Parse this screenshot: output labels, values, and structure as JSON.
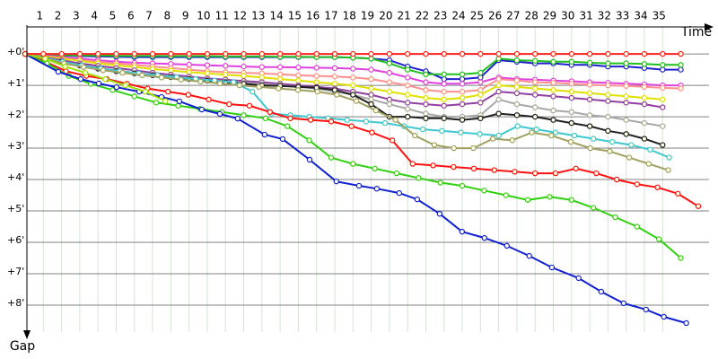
{
  "chart_data": {
    "type": "line",
    "x_label": "Time",
    "y_label": "Gap",
    "xlim": [
      0,
      37.5
    ],
    "ylim": [
      -0.86,
      9.0
    ],
    "y_inverted": true,
    "grid": true,
    "xticks": [
      1,
      2,
      3,
      4,
      5,
      6,
      7,
      8,
      9,
      10,
      11,
      12,
      13,
      14,
      15,
      16,
      17,
      18,
      19,
      20,
      21,
      22,
      23,
      24,
      25,
      26,
      27,
      28,
      29,
      30,
      31,
      32,
      33,
      34,
      35
    ],
    "yticks": [
      {
        "value": 0,
        "label": "+0'"
      },
      {
        "value": 1,
        "label": "+1'"
      },
      {
        "value": 2,
        "label": "+2'"
      },
      {
        "value": 3,
        "label": "+3'"
      },
      {
        "value": 4,
        "label": "+4'"
      },
      {
        "value": 5,
        "label": "+5'"
      },
      {
        "value": 6,
        "label": "+6'"
      },
      {
        "value": 7,
        "label": "+7'"
      },
      {
        "value": 8,
        "label": "+8'"
      }
    ],
    "series": [
      {
        "color": "#2020d0",
        "x": [
          0,
          1,
          2,
          3,
          4,
          5,
          6,
          7,
          8,
          9,
          10,
          11,
          12,
          13,
          14,
          15,
          16,
          17,
          18,
          19,
          20,
          21,
          22,
          23,
          24,
          25,
          26,
          27,
          28,
          29,
          30,
          31,
          32,
          33,
          34,
          35,
          36
        ],
        "values": [
          0,
          0.03,
          0.05,
          0.07,
          0.08,
          0.09,
          0.1,
          0.1,
          0.1,
          0.1,
          0.1,
          0.1,
          0.1,
          0.1,
          0.1,
          0.1,
          0.1,
          0.1,
          0.12,
          0.15,
          0.2,
          0.4,
          0.55,
          0.8,
          0.8,
          0.75,
          0.2,
          0.25,
          0.3,
          0.3,
          0.35,
          0.35,
          0.4,
          0.4,
          0.45,
          0.5,
          0.5
        ]
      },
      {
        "color": "#20c020",
        "x": [
          0,
          1,
          2,
          3,
          4,
          5,
          6,
          7,
          8,
          9,
          10,
          11,
          12,
          13,
          14,
          15,
          16,
          17,
          18,
          19,
          20,
          21,
          22,
          23,
          24,
          25,
          26,
          27,
          28,
          29,
          30,
          31,
          32,
          33,
          34,
          35,
          36
        ],
        "values": [
          0,
          0.02,
          0.04,
          0.05,
          0.05,
          0.06,
          0.06,
          0.06,
          0.07,
          0.07,
          0.07,
          0.08,
          0.08,
          0.08,
          0.09,
          0.09,
          0.1,
          0.1,
          0.12,
          0.15,
          0.3,
          0.5,
          0.65,
          0.65,
          0.65,
          0.6,
          0.15,
          0.2,
          0.22,
          0.25,
          0.25,
          0.28,
          0.3,
          0.3,
          0.32,
          0.35,
          0.35
        ]
      },
      {
        "color": "#e040e0",
        "x": [
          0,
          1,
          2,
          3,
          4,
          5,
          6,
          7,
          8,
          9,
          10,
          11,
          12,
          13,
          14,
          15,
          16,
          17,
          18,
          19,
          20,
          21,
          22,
          23,
          24,
          25,
          26,
          27,
          28,
          29,
          30,
          31,
          32,
          33,
          34,
          35,
          36
        ],
        "values": [
          0,
          0.05,
          0.1,
          0.15,
          0.2,
          0.25,
          0.28,
          0.3,
          0.32,
          0.34,
          0.36,
          0.38,
          0.4,
          0.42,
          0.42,
          0.43,
          0.44,
          0.45,
          0.47,
          0.5,
          0.6,
          0.75,
          0.9,
          0.95,
          0.95,
          0.9,
          0.75,
          0.8,
          0.82,
          0.85,
          0.87,
          0.9,
          0.92,
          0.95,
          0.97,
          1.0,
          1.0
        ]
      },
      {
        "color": "#ff9090",
        "x": [
          0,
          1,
          2,
          3,
          4,
          5,
          6,
          7,
          8,
          9,
          10,
          11,
          12,
          13,
          14,
          15,
          16,
          17,
          18,
          19,
          20,
          21,
          22,
          23,
          24,
          25,
          26,
          27,
          28,
          29,
          30,
          31,
          32,
          33,
          34,
          35,
          36
        ],
        "values": [
          0,
          0.07,
          0.13,
          0.2,
          0.25,
          0.3,
          0.35,
          0.4,
          0.45,
          0.5,
          0.55,
          0.58,
          0.6,
          0.62,
          0.65,
          0.68,
          0.7,
          0.72,
          0.75,
          0.8,
          0.9,
          1.0,
          1.15,
          1.2,
          1.2,
          1.15,
          0.8,
          0.85,
          0.9,
          0.92,
          0.95,
          0.98,
          1.0,
          1.02,
          1.05,
          1.08,
          1.1
        ]
      },
      {
        "color": "#e0e000",
        "x": [
          0,
          1,
          2,
          3,
          4,
          5,
          6,
          7,
          8,
          9,
          10,
          11,
          12,
          13,
          14,
          15,
          16,
          17,
          18,
          19,
          20,
          21,
          22,
          23,
          24,
          25,
          26,
          27,
          28,
          29,
          30,
          31,
          32,
          33,
          34,
          35
        ],
        "values": [
          0,
          0.08,
          0.15,
          0.22,
          0.3,
          0.36,
          0.42,
          0.48,
          0.53,
          0.58,
          0.62,
          0.66,
          0.7,
          0.75,
          0.8,
          0.85,
          0.9,
          0.95,
          1.0,
          1.1,
          1.2,
          1.3,
          1.4,
          1.45,
          1.4,
          1.3,
          1.0,
          1.05,
          1.1,
          1.15,
          1.2,
          1.25,
          1.3,
          1.35,
          1.4,
          1.45
        ]
      },
      {
        "color": "#9040a0",
        "x": [
          0,
          1,
          2,
          3,
          4,
          5,
          6,
          7,
          8,
          9,
          10,
          11,
          12,
          13,
          14,
          15,
          16,
          17,
          18,
          19,
          20,
          21,
          22,
          23,
          24,
          25,
          26,
          27,
          28,
          29,
          30,
          31,
          32,
          33,
          34,
          35
        ],
        "values": [
          0,
          0.1,
          0.2,
          0.3,
          0.38,
          0.45,
          0.52,
          0.6,
          0.66,
          0.72,
          0.78,
          0.82,
          0.86,
          0.9,
          0.95,
          1.0,
          1.05,
          1.1,
          1.2,
          1.3,
          1.45,
          1.55,
          1.6,
          1.65,
          1.6,
          1.55,
          1.2,
          1.25,
          1.3,
          1.35,
          1.4,
          1.45,
          1.5,
          1.55,
          1.6,
          1.7
        ]
      },
      {
        "color": "#a8a8a8",
        "x": [
          0,
          1,
          2,
          3,
          4,
          5,
          6,
          7,
          8,
          9,
          10,
          11,
          12,
          13,
          14,
          15,
          16,
          17,
          18,
          19,
          20,
          21,
          22,
          23,
          24,
          25,
          26,
          27,
          28,
          29,
          30,
          31,
          32,
          33,
          34,
          35
        ],
        "values": [
          0,
          0.12,
          0.25,
          0.35,
          0.45,
          0.52,
          0.6,
          0.66,
          0.72,
          0.78,
          0.83,
          0.88,
          0.92,
          0.96,
          1.0,
          1.05,
          1.1,
          1.2,
          1.3,
          1.45,
          1.6,
          1.75,
          1.9,
          2.0,
          2.0,
          1.95,
          1.45,
          1.6,
          1.7,
          1.8,
          1.85,
          1.95,
          2.0,
          2.1,
          2.2,
          2.3
        ]
      },
      {
        "color": "#202020",
        "x": [
          0,
          1,
          2,
          3,
          4,
          5,
          6,
          7,
          8,
          9,
          10,
          11,
          12,
          13,
          14,
          15,
          16,
          17,
          18,
          19,
          20,
          21,
          22,
          23,
          24,
          25,
          26,
          27,
          28,
          29,
          30,
          31,
          32,
          33,
          34,
          35
        ],
        "values": [
          0,
          0.12,
          0.25,
          0.37,
          0.47,
          0.55,
          0.62,
          0.68,
          0.74,
          0.8,
          0.85,
          0.9,
          0.95,
          1.0,
          1.02,
          1.05,
          1.08,
          1.15,
          1.3,
          1.6,
          2.0,
          2.0,
          2.05,
          2.05,
          2.1,
          2.05,
          1.9,
          1.95,
          2.0,
          2.1,
          2.2,
          2.3,
          2.45,
          2.55,
          2.7,
          2.9
        ]
      },
      {
        "color": "#40c8d0",
        "x": [
          0,
          1.04,
          2.08,
          3.12,
          4.16,
          5.2,
          6.24,
          7.28,
          8.32,
          9.36,
          10.4,
          11.44,
          12.48,
          13.52,
          14.56,
          15.6,
          16.64,
          17.68,
          18.72,
          19.76,
          20.8,
          21.84,
          22.88,
          23.92,
          24.96,
          26,
          27.04,
          28.08,
          29.12,
          30.16,
          31.2,
          32.24,
          33.28,
          34.32,
          35.36
        ],
        "values": [
          0,
          0.12,
          0.25,
          0.37,
          0.47,
          0.55,
          0.62,
          0.68,
          0.74,
          0.8,
          0.85,
          0.9,
          1.2,
          1.9,
          1.95,
          2.0,
          2.05,
          2.1,
          2.15,
          2.2,
          2.3,
          2.4,
          2.45,
          2.5,
          2.55,
          2.6,
          2.3,
          2.4,
          2.5,
          2.6,
          2.7,
          2.8,
          2.9,
          3.05,
          3.3
        ]
      },
      {
        "color": "#a0a060",
        "x": [
          0,
          1.07,
          2.14,
          3.21,
          4.28,
          5.35,
          6.42,
          7.49,
          8.56,
          9.63,
          10.7,
          11.77,
          12.84,
          13.91,
          14.98,
          16.05,
          17.12,
          18.19,
          19.26,
          20.33,
          21.4,
          22.47,
          23.54,
          24.61,
          25.68,
          26.75,
          27.82,
          28.89,
          29.96,
          31.03,
          32.1,
          33.17,
          34.24,
          35.31
        ],
        "values": [
          0,
          0.15,
          0.3,
          0.42,
          0.52,
          0.6,
          0.68,
          0.75,
          0.82,
          0.88,
          0.94,
          1.0,
          1.05,
          1.1,
          1.15,
          1.2,
          1.3,
          1.5,
          1.8,
          2.1,
          2.6,
          2.9,
          3.0,
          3.0,
          2.7,
          2.75,
          2.5,
          2.6,
          2.8,
          3.0,
          3.1,
          3.3,
          3.5,
          3.7
        ]
      },
      {
        "color": "#ff1010",
        "x": [
          0,
          1.12,
          2.24,
          3.36,
          4.48,
          5.6,
          6.72,
          7.84,
          8.96,
          10.08,
          11.2,
          12.32,
          13.44,
          14.56,
          15.68,
          16.8,
          17.92,
          19.04,
          20.16,
          21.28,
          22.4,
          23.52,
          24.64,
          25.76,
          26.88,
          28,
          29.12,
          30.24,
          31.36,
          32.48,
          33.6,
          34.72,
          35.84,
          36.96
        ],
        "values": [
          0,
          0.25,
          0.55,
          0.7,
          0.8,
          0.95,
          1.1,
          1.2,
          1.3,
          1.45,
          1.6,
          1.65,
          1.85,
          2.05,
          2.1,
          2.15,
          2.3,
          2.5,
          2.75,
          3.5,
          3.55,
          3.6,
          3.65,
          3.7,
          3.75,
          3.8,
          3.8,
          3.65,
          3.8,
          4.0,
          4.15,
          4.25,
          4.45,
          4.85
        ]
      },
      {
        "color": "#30d010",
        "x": [
          0,
          1.2,
          2.4,
          3.6,
          4.8,
          6,
          7.2,
          8.4,
          9.6,
          10.8,
          12,
          13.2,
          14.4,
          15.6,
          16.8,
          18,
          19.2,
          20.4,
          21.6,
          22.8,
          24,
          25.2,
          26.4,
          27.6,
          28.8,
          30,
          31.2,
          32.4,
          33.6,
          34.8,
          36
        ],
        "values": [
          0,
          0.3,
          0.7,
          0.95,
          1.15,
          1.35,
          1.55,
          1.65,
          1.75,
          1.85,
          1.95,
          2.05,
          2.3,
          2.75,
          3.3,
          3.5,
          3.65,
          3.8,
          3.95,
          4.1,
          4.2,
          4.35,
          4.5,
          4.65,
          4.55,
          4.65,
          4.9,
          5.2,
          5.5,
          5.9,
          6.5
        ]
      },
      {
        "color": "#1020d0",
        "x": [
          0,
          1.82,
          3.05,
          4.04,
          5.02,
          6.26,
          7.49,
          8.47,
          9.7,
          10.69,
          11.67,
          13.15,
          14.14,
          15.62,
          17.09,
          18.33,
          19.31,
          20.54,
          21.53,
          22.76,
          23.99,
          25.22,
          26.45,
          27.68,
          28.92,
          30.39,
          31.63,
          32.86,
          34.09,
          35.07,
          36.3
        ],
        "values": [
          0,
          0.57,
          0.8,
          0.94,
          1.06,
          1.2,
          1.37,
          1.51,
          1.77,
          1.91,
          2.06,
          2.57,
          2.71,
          3.37,
          4.06,
          4.2,
          4.29,
          4.43,
          4.63,
          5.09,
          5.66,
          5.86,
          6.11,
          6.43,
          6.8,
          7.14,
          7.57,
          7.94,
          8.14,
          8.37,
          8.57
        ]
      },
      {
        "color": "#a0e000",
        "x": [
          0,
          1.1,
          2.2,
          3.3,
          4.4,
          5.5,
          6.6,
          7.7
        ],
        "values": [
          0,
          0.15,
          0.4,
          0.6,
          0.8,
          1.0,
          1.2,
          1.5
        ]
      },
      {
        "color": "#ff2020",
        "x": [
          0,
          1,
          2,
          3,
          4,
          5,
          6,
          7,
          8,
          9,
          10,
          11,
          12,
          13,
          14,
          15,
          16,
          17,
          18,
          19,
          20,
          21,
          22,
          23,
          24,
          25,
          26,
          27,
          28,
          29,
          30,
          31,
          32,
          33,
          34,
          35,
          36
        ],
        "values": [
          0,
          0,
          0,
          0,
          0,
          0,
          0,
          0,
          0,
          0,
          0,
          0,
          0,
          0,
          0,
          0,
          0,
          0,
          0,
          0,
          0,
          0,
          0,
          0,
          0,
          0,
          0,
          0,
          0,
          0,
          0,
          0,
          0,
          0,
          0,
          0,
          0
        ]
      }
    ]
  }
}
